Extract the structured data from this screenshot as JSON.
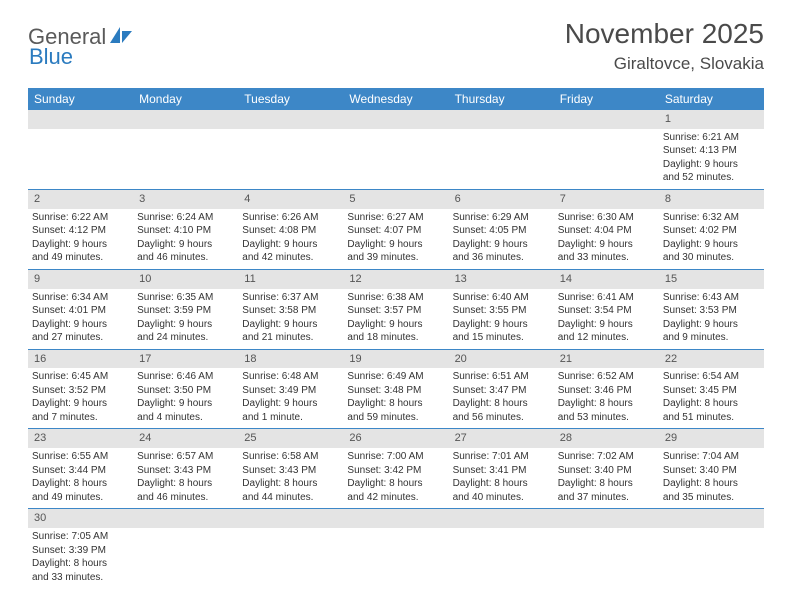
{
  "logo": {
    "part1": "General",
    "part2": "Blue"
  },
  "title": "November 2025",
  "location": "Giraltovce, Slovakia",
  "colors": {
    "header_bg": "#3d87c7",
    "header_text": "#ffffff",
    "daynum_bg": "#e4e4e4",
    "text": "#333333",
    "border": "#3d87c7"
  },
  "day_names": [
    "Sunday",
    "Monday",
    "Tuesday",
    "Wednesday",
    "Thursday",
    "Friday",
    "Saturday"
  ],
  "weeks": [
    [
      null,
      null,
      null,
      null,
      null,
      null,
      {
        "n": "1",
        "sr": "6:21 AM",
        "ss": "4:13 PM",
        "dl": "9 hours and 52 minutes."
      }
    ],
    [
      {
        "n": "2",
        "sr": "6:22 AM",
        "ss": "4:12 PM",
        "dl": "9 hours and 49 minutes."
      },
      {
        "n": "3",
        "sr": "6:24 AM",
        "ss": "4:10 PM",
        "dl": "9 hours and 46 minutes."
      },
      {
        "n": "4",
        "sr": "6:26 AM",
        "ss": "4:08 PM",
        "dl": "9 hours and 42 minutes."
      },
      {
        "n": "5",
        "sr": "6:27 AM",
        "ss": "4:07 PM",
        "dl": "9 hours and 39 minutes."
      },
      {
        "n": "6",
        "sr": "6:29 AM",
        "ss": "4:05 PM",
        "dl": "9 hours and 36 minutes."
      },
      {
        "n": "7",
        "sr": "6:30 AM",
        "ss": "4:04 PM",
        "dl": "9 hours and 33 minutes."
      },
      {
        "n": "8",
        "sr": "6:32 AM",
        "ss": "4:02 PM",
        "dl": "9 hours and 30 minutes."
      }
    ],
    [
      {
        "n": "9",
        "sr": "6:34 AM",
        "ss": "4:01 PM",
        "dl": "9 hours and 27 minutes."
      },
      {
        "n": "10",
        "sr": "6:35 AM",
        "ss": "3:59 PM",
        "dl": "9 hours and 24 minutes."
      },
      {
        "n": "11",
        "sr": "6:37 AM",
        "ss": "3:58 PM",
        "dl": "9 hours and 21 minutes."
      },
      {
        "n": "12",
        "sr": "6:38 AM",
        "ss": "3:57 PM",
        "dl": "9 hours and 18 minutes."
      },
      {
        "n": "13",
        "sr": "6:40 AM",
        "ss": "3:55 PM",
        "dl": "9 hours and 15 minutes."
      },
      {
        "n": "14",
        "sr": "6:41 AM",
        "ss": "3:54 PM",
        "dl": "9 hours and 12 minutes."
      },
      {
        "n": "15",
        "sr": "6:43 AM",
        "ss": "3:53 PM",
        "dl": "9 hours and 9 minutes."
      }
    ],
    [
      {
        "n": "16",
        "sr": "6:45 AM",
        "ss": "3:52 PM",
        "dl": "9 hours and 7 minutes."
      },
      {
        "n": "17",
        "sr": "6:46 AM",
        "ss": "3:50 PM",
        "dl": "9 hours and 4 minutes."
      },
      {
        "n": "18",
        "sr": "6:48 AM",
        "ss": "3:49 PM",
        "dl": "9 hours and 1 minute."
      },
      {
        "n": "19",
        "sr": "6:49 AM",
        "ss": "3:48 PM",
        "dl": "8 hours and 59 minutes."
      },
      {
        "n": "20",
        "sr": "6:51 AM",
        "ss": "3:47 PM",
        "dl": "8 hours and 56 minutes."
      },
      {
        "n": "21",
        "sr": "6:52 AM",
        "ss": "3:46 PM",
        "dl": "8 hours and 53 minutes."
      },
      {
        "n": "22",
        "sr": "6:54 AM",
        "ss": "3:45 PM",
        "dl": "8 hours and 51 minutes."
      }
    ],
    [
      {
        "n": "23",
        "sr": "6:55 AM",
        "ss": "3:44 PM",
        "dl": "8 hours and 49 minutes."
      },
      {
        "n": "24",
        "sr": "6:57 AM",
        "ss": "3:43 PM",
        "dl": "8 hours and 46 minutes."
      },
      {
        "n": "25",
        "sr": "6:58 AM",
        "ss": "3:43 PM",
        "dl": "8 hours and 44 minutes."
      },
      {
        "n": "26",
        "sr": "7:00 AM",
        "ss": "3:42 PM",
        "dl": "8 hours and 42 minutes."
      },
      {
        "n": "27",
        "sr": "7:01 AM",
        "ss": "3:41 PM",
        "dl": "8 hours and 40 minutes."
      },
      {
        "n": "28",
        "sr": "7:02 AM",
        "ss": "3:40 PM",
        "dl": "8 hours and 37 minutes."
      },
      {
        "n": "29",
        "sr": "7:04 AM",
        "ss": "3:40 PM",
        "dl": "8 hours and 35 minutes."
      }
    ],
    [
      {
        "n": "30",
        "sr": "7:05 AM",
        "ss": "3:39 PM",
        "dl": "8 hours and 33 minutes."
      },
      null,
      null,
      null,
      null,
      null,
      null
    ]
  ],
  "labels": {
    "sunrise": "Sunrise:",
    "sunset": "Sunset:",
    "daylight": "Daylight:"
  }
}
